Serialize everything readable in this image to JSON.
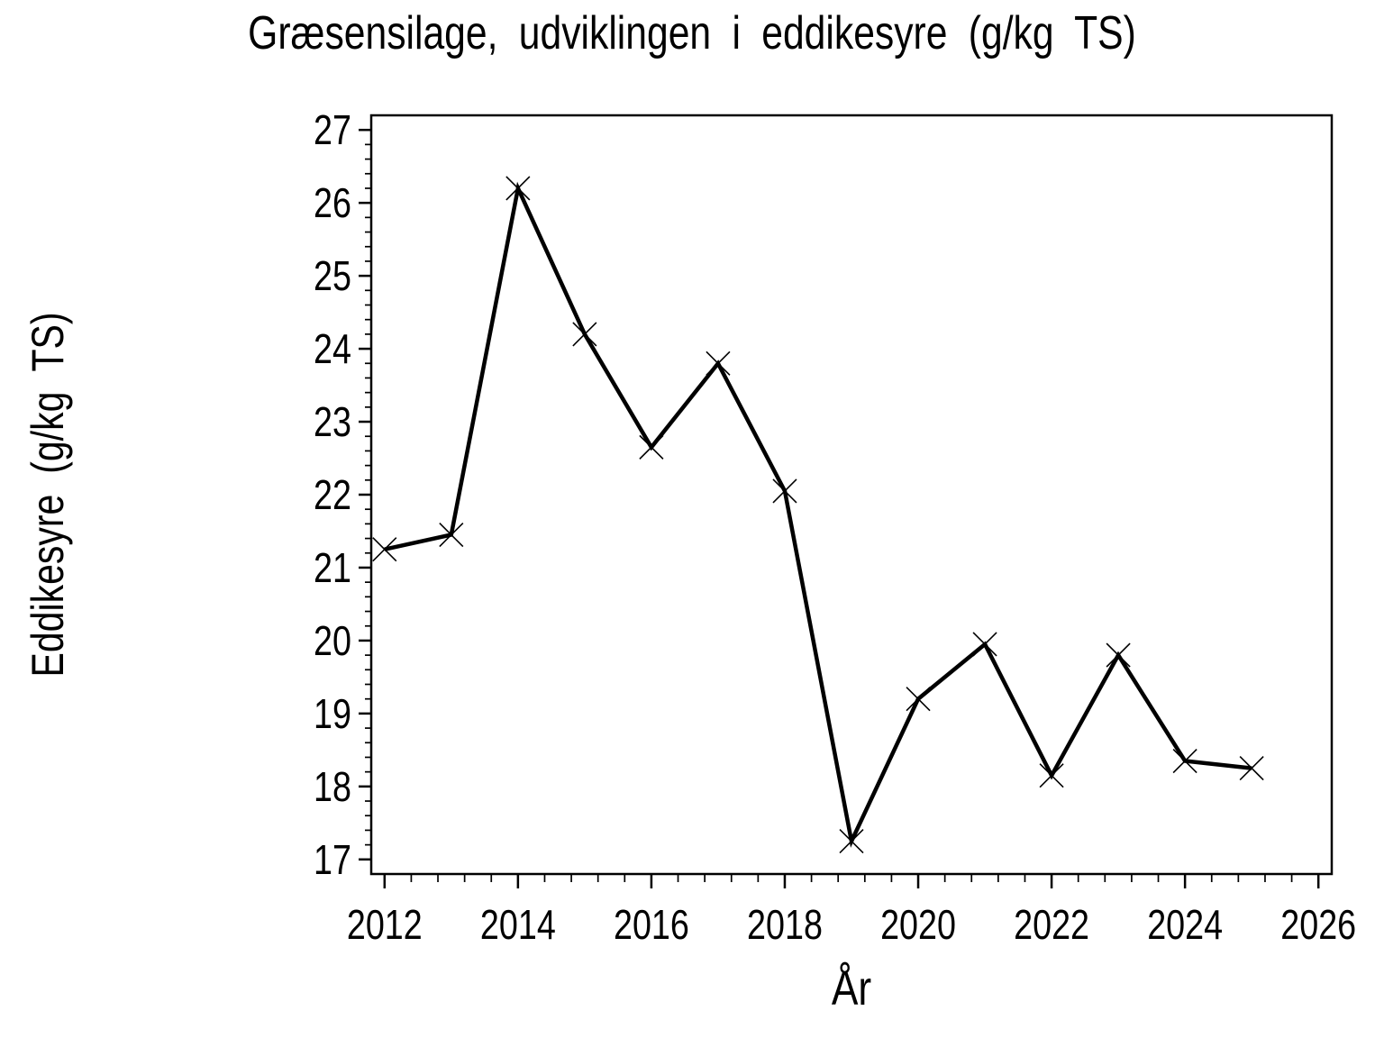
{
  "figure": {
    "title": "Græsensilage, udviklingen i eddikesyre (g/kg TS)",
    "x_axis_label": "År",
    "y_axis_label": "Eddikesyre (g/kg TS)"
  },
  "chart_data": {
    "type": "line",
    "title": "Græsensilage, udviklingen i eddikesyre (g/kg TS)",
    "xlabel": "År",
    "ylabel": "Eddikesyre (g/kg TS)",
    "x": [
      2012,
      2013,
      2014,
      2015,
      2016,
      2017,
      2018,
      2019,
      2020,
      2021,
      2022,
      2023,
      2024,
      2025
    ],
    "series": [
      {
        "name": "Eddikesyre (g/kg TS)",
        "values": [
          21.25,
          21.45,
          26.2,
          24.2,
          22.65,
          23.8,
          22.05,
          17.25,
          19.2,
          19.95,
          18.15,
          19.8,
          18.35,
          18.25
        ]
      }
    ],
    "xticks": [
      2012,
      2014,
      2016,
      2018,
      2020,
      2022,
      2024,
      2026
    ],
    "yticks": [
      17,
      18,
      19,
      20,
      21,
      22,
      23,
      24,
      25,
      26,
      27
    ],
    "xlim": [
      2011.8,
      2026.2
    ],
    "ylim": [
      16.8,
      27.2
    ],
    "minor_x_step": 0.4,
    "minor_y_step": 0.2,
    "marker": "x",
    "line_color": "#000000",
    "axis_color": "#000000",
    "bg_color": "#ffffff",
    "grid": false,
    "legend": null
  }
}
